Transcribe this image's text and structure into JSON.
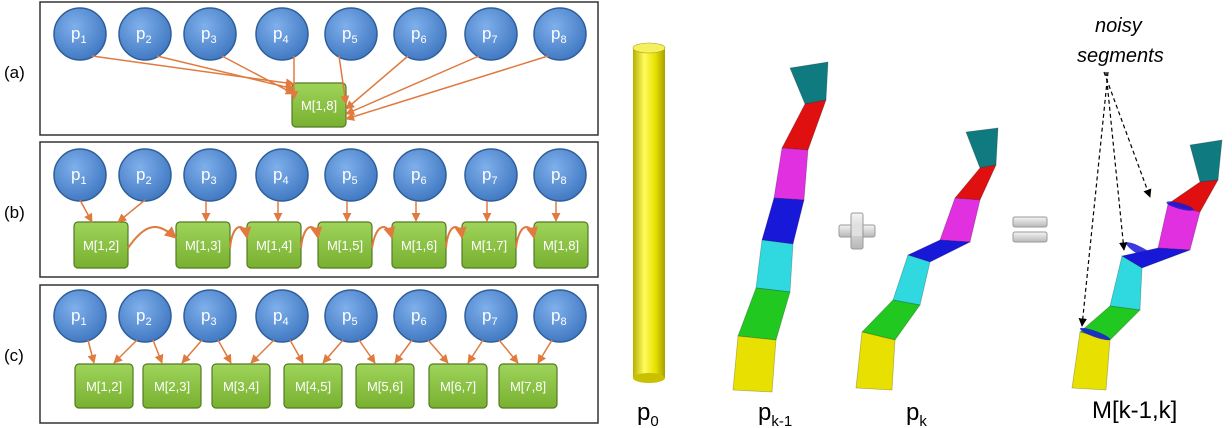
{
  "panel_labels": [
    "(a)",
    "(b)",
    "(c)"
  ],
  "nodes": [
    "p",
    "p",
    "p",
    "p",
    "p",
    "p",
    "p",
    "p"
  ],
  "node_subs": [
    "1",
    "2",
    "3",
    "4",
    "5",
    "6",
    "7",
    "8"
  ],
  "panel_a": {
    "boxes": [
      "M[1,8]"
    ]
  },
  "panel_b": {
    "boxes": [
      "M[1,2]",
      "M[1,3]",
      "M[1,4]",
      "M[1,5]",
      "M[1,6]",
      "M[1,7]",
      "M[1,8]"
    ]
  },
  "panel_c": {
    "boxes": [
      "M[1,2]",
      "M[2,3]",
      "M[3,4]",
      "M[4,5]",
      "M[5,6]",
      "M[6,7]",
      "M[7,8]"
    ]
  },
  "figure": {
    "p0": {
      "base": "p",
      "sub": "0"
    },
    "pk1": {
      "base": "p",
      "sub": "k-1"
    },
    "pk": {
      "base": "p",
      "sub": "k"
    },
    "merged": "M[k-1,k]",
    "annotation_line1": "noisy",
    "annotation_line2": "segments"
  },
  "colors": {
    "node_fill": "#4a86d0",
    "node_stroke": "#2e5f99",
    "box_fill": "#8cc63f",
    "box_stroke": "#557a22",
    "arrow": "#e07a3f",
    "tube_yellow": "#e8e000",
    "seg_teal": "#0f7b80",
    "seg_red": "#e01010",
    "seg_magenta": "#e030e0",
    "seg_blue": "#1818d8",
    "seg_cyan": "#30d8e0",
    "seg_green": "#20c820"
  }
}
